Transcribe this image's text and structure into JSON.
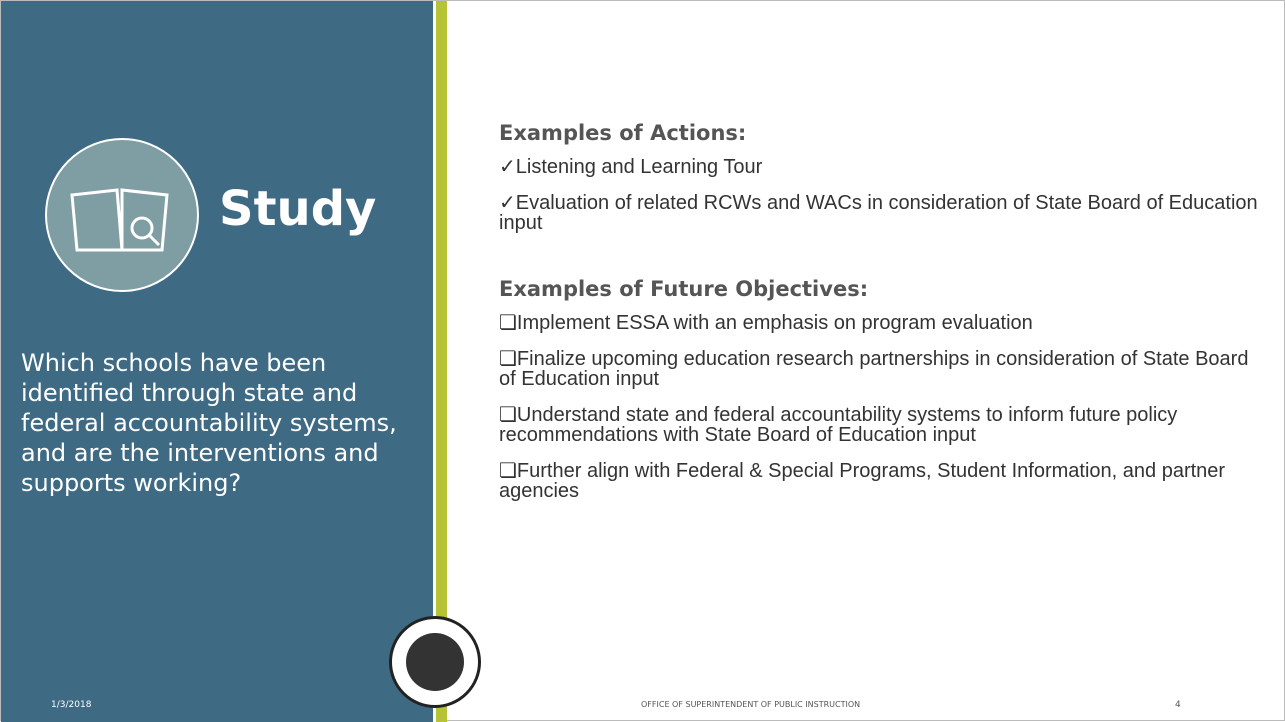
{
  "sidebar": {
    "title": "Study",
    "question": "Which schools have been identified through state and federal accountability systems, and are the interventions and supports working?",
    "date": "1/3/2018"
  },
  "actions": {
    "heading": "Examples of Actions:",
    "items": [
      "✓Listening and Learning Tour",
      "✓Evaluation of related RCWs and WACs in consideration of State Board of Education input"
    ]
  },
  "objectives": {
    "heading": "Examples of Future Objectives:",
    "items": [
      "❏Implement ESSA with an emphasis on program evaluation",
      "❏Finalize upcoming education research partnerships in consideration of State Board of Education input",
      "❏Understand state and federal accountability systems to inform future policy recommendations with State Board of Education input",
      "❏Further align with Federal & Special Programs, Student Information, and partner agencies"
    ]
  },
  "footer": {
    "office": "OFFICE OF SUPERINTENDENT OF PUBLIC INSTRUCTION",
    "page": "4"
  }
}
